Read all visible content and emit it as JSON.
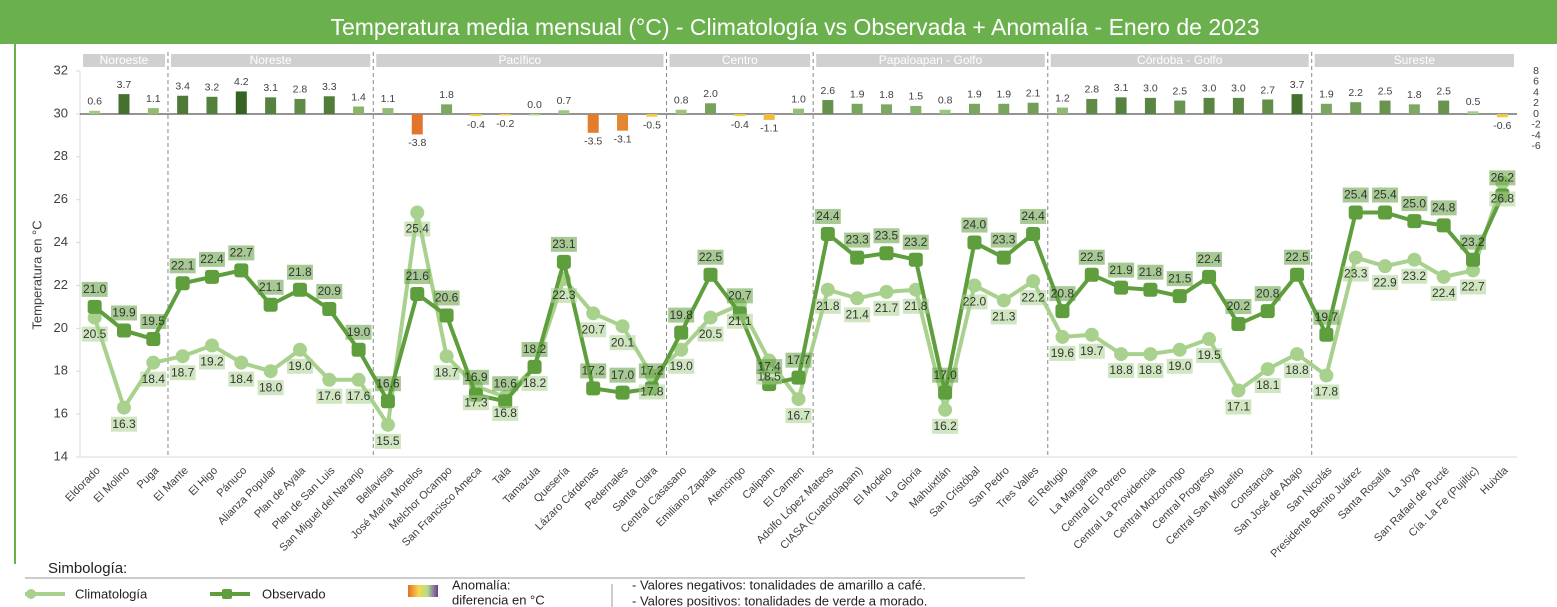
{
  "chart_data": {
    "type": "line",
    "title": "Temperatura media mensual (°C)  -   Climatología vs Observada + Anomalía   -  Enero de 2023",
    "y_label": "Temperatura en °C",
    "categories": [
      "Eldorado",
      "El Molino",
      "Puga",
      "El Mante",
      "El Higo",
      "Pánuco",
      "Alianza Popular",
      "Plan de Ayala",
      "Plan de San Luis",
      "San Miguel del Naranjo",
      "Bellavista",
      "José María Morelos",
      "Melchor Ocampo",
      "San Francisco Ameca",
      "Tala",
      "Tamazula",
      "Quesería",
      "Lázaro Cárdenas",
      "Pedernales",
      "Santa Clara",
      "Central Casasano",
      "Emiliano Zapata",
      "Atencingo",
      "Calipam",
      "El Carmen",
      "Adolfo López Mateos",
      "CIASA (Cuatotolapam)",
      "El Modelo",
      "La Gloria",
      "Mahuixtlán",
      "San Cristóbal",
      "San Pedro",
      "Tres Valles",
      "El Refugio",
      "La Margarita",
      "Central El Potrero",
      "Central La Providencia",
      "Central Motzorongo",
      "Central Progreso",
      "Central San Miguelito",
      "Constancia",
      "San José de Abajo",
      "San Nicolás",
      "Presidente Benito Juárez",
      "Santa Rosalía",
      "La Joya",
      "San Rafael de Pucté",
      "Cía. La Fe (Pujiltic)",
      "Huixtla"
    ],
    "category_regions": [
      "Noroeste",
      "Noroeste",
      "Noroeste",
      "Noreste",
      "Noreste",
      "Noreste",
      "Noreste",
      "Noreste",
      "Noreste",
      "Noreste",
      "Pacífico",
      "Pacífico",
      "Pacífico",
      "Pacífico",
      "Pacífico",
      "Pacífico",
      "Pacífico",
      "Pacífico",
      "Pacífico",
      "Pacífico",
      "Centro",
      "Centro",
      "Centro",
      "Centro",
      "Centro",
      "Papaloapan - Golfo",
      "Papaloapan - Golfo",
      "Papaloapan - Golfo",
      "Papaloapan - Golfo",
      "Papaloapan - Golfo",
      "Papaloapan - Golfo",
      "Papaloapan - Golfo",
      "Papaloapan - Golfo",
      "Córdoba - Golfo",
      "Córdoba - Golfo",
      "Córdoba - Golfo",
      "Córdoba - Golfo",
      "Córdoba - Golfo",
      "Córdoba - Golfo",
      "Córdoba - Golfo",
      "Córdoba - Golfo",
      "Córdoba - Golfo",
      "Sureste",
      "Sureste",
      "Sureste",
      "Sureste",
      "Sureste",
      "Sureste",
      "Sureste"
    ],
    "series": [
      {
        "name": "Climatología",
        "color": "#a9d18e",
        "values": [
          20.5,
          16.3,
          18.4,
          18.7,
          19.2,
          18.4,
          18.0,
          19.0,
          17.6,
          17.6,
          15.5,
          25.4,
          18.7,
          17.3,
          16.8,
          18.2,
          22.3,
          20.7,
          20.1,
          17.8,
          19.0,
          20.5,
          21.1,
          18.5,
          16.7,
          21.8,
          21.4,
          21.7,
          21.8,
          16.2,
          22.0,
          21.3,
          22.2,
          19.6,
          19.7,
          18.8,
          18.8,
          19.0,
          19.5,
          17.1,
          18.1,
          18.8,
          17.8,
          23.3,
          22.9,
          23.2,
          22.4,
          22.7,
          26.8
        ],
        "value_labels": [
          "20.5",
          "16.3",
          "18.4",
          "18.7",
          "19.2",
          "18.4",
          "18.0",
          "19.0",
          "17.6",
          "17.6",
          "15.5",
          "25.4",
          "18.7",
          "17.3",
          "16.8",
          "18.2",
          "22.3",
          "20.7",
          "20.1",
          "17.8",
          "19.0",
          "20.5",
          "21.1",
          "18.5",
          "16.7",
          "21.8",
          "21.4",
          "21.7",
          "21.8",
          "16.2",
          "22.0",
          "21.3",
          "22.2",
          "19.6",
          "19.7",
          "18.8",
          "18.8",
          "19.0",
          "19.5",
          "17.1",
          "18.1",
          "18.8",
          "17.8",
          "23.3",
          "22.9",
          "23.2",
          "22.4",
          "22.7",
          "26.8"
        ]
      },
      {
        "name": "Observado",
        "color": "#5e9e3c",
        "values": [
          21.0,
          19.9,
          19.5,
          22.1,
          22.4,
          22.7,
          21.1,
          21.8,
          20.9,
          19.0,
          16.6,
          21.6,
          20.6,
          16.9,
          16.6,
          18.2,
          23.1,
          17.2,
          17.0,
          17.2,
          19.8,
          22.5,
          20.7,
          17.4,
          17.7,
          24.4,
          23.3,
          23.5,
          23.2,
          17.0,
          24.0,
          23.3,
          24.4,
          20.8,
          22.5,
          21.9,
          21.8,
          21.5,
          22.4,
          20.2,
          20.8,
          22.5,
          19.7,
          25.4,
          25.4,
          25.0,
          24.8,
          23.2,
          26.2
        ],
        "value_labels": [
          "21.0",
          "19.9",
          "19.5",
          "22.1",
          "22.4",
          "22.7",
          "21.1",
          "21.8",
          "20.9",
          "19.0",
          "16.6",
          "21.6",
          "20.6",
          "16.9",
          "16.6",
          "18.2",
          "23.1",
          "17.2",
          "17.0",
          "17.2",
          "19.8",
          "22.5",
          "20.7",
          "17.4",
          "17.7",
          "24.4",
          "23.3",
          "23.5",
          "23.2",
          "17.0",
          "24.0",
          "23.3",
          "24.4",
          "20.8",
          "22.5",
          "21.9",
          "21.8",
          "21.5",
          "22.4",
          "20.2",
          "20.8",
          "22.5",
          "19.7",
          "25.4",
          "25.4",
          "25.0",
          "24.8",
          "23.2",
          "26.2"
        ]
      },
      {
        "name": "Anomalía",
        "type": "bar",
        "axis": "y2",
        "values": [
          0.6,
          3.7,
          1.1,
          3.4,
          3.2,
          4.2,
          3.1,
          2.8,
          3.3,
          1.4,
          1.1,
          -3.8,
          1.8,
          -0.4,
          -0.2,
          0,
          0.7,
          -3.5,
          -3.1,
          -0.5,
          0.8,
          2.0,
          -0.4,
          -1.1,
          1.0,
          2.6,
          1.9,
          1.8,
          1.5,
          0.8,
          1.9,
          1.9,
          2.1,
          1.2,
          2.8,
          3.1,
          3.0,
          2.5,
          3.0,
          3.0,
          2.7,
          3.7,
          1.9,
          2.2,
          2.5,
          1.8,
          2.5,
          0.5,
          -0.6
        ],
        "value_labels": [
          "0.6",
          "3.7",
          "1.1",
          "3.4",
          "3.2",
          "4.2",
          "3.1",
          "2.8",
          "3.3",
          "1.4",
          "1.1",
          "-3.8",
          "1.8",
          "-0.4",
          "-0.2",
          "0.0",
          "0.7",
          "-3.5",
          "-3.1",
          "-0.5",
          "0.8",
          "2.0",
          "-0.4",
          "-1.1",
          "1.0",
          "2.6",
          "1.9",
          "1.8",
          "1.5",
          "0.8",
          "1.9",
          "1.9",
          "2.1",
          "1.2",
          "2.8",
          "3.1",
          "3.0",
          "2.5",
          "3.0",
          "3.0",
          "2.7",
          "3.7",
          "1.9",
          "2.2",
          "2.5",
          "1.8",
          "2.5",
          "0.5",
          "-0.6"
        ]
      }
    ],
    "color_scale": {
      "negative": [
        "#f7d64a",
        "#e0702a"
      ],
      "positive": [
        "#b2dc8f",
        "#2d5a1c"
      ]
    },
    "ylim": [
      14,
      32
    ],
    "yticks": [
      14,
      16,
      18,
      20,
      22,
      24,
      26,
      28,
      30,
      32
    ],
    "y2lim": [
      -63.8,
      8
    ],
    "y2ticks": [
      8,
      6,
      4,
      2,
      0,
      -2,
      -4,
      -6
    ],
    "grid": false,
    "legend": {
      "title": "Simbología:",
      "anomaly_label": [
        "Anomalía:",
        "diferencia en °C"
      ],
      "notes": [
        "- Valores negativos: tonalidades de amarillo a café.",
        "- Valores positivos: tonalidades de verde a morado."
      ]
    }
  }
}
